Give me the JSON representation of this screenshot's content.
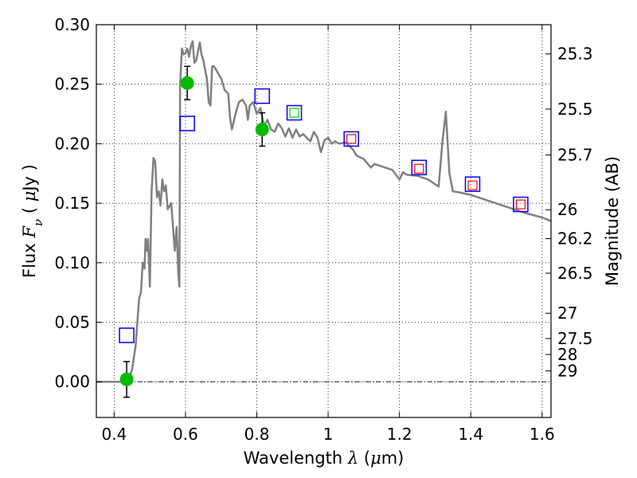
{
  "chart_data": {
    "type": "scatter",
    "title": "",
    "xlabel": {
      "prefix": "Wavelength  ",
      "symbol": "λ",
      "unit_open": " (",
      "unit_mu": "μ",
      "unit_close": "m)"
    },
    "ylabel": {
      "prefix": "Flux  ",
      "symbol": "F",
      "subscript": "ν",
      "unit_open": "  ( ",
      "unit_mu": "μ",
      "unit_close": "Jy )"
    },
    "y2label": "Magnitude (AB)",
    "xlim": [
      0.35,
      1.625
    ],
    "ylim": [
      -0.03,
      0.3
    ],
    "xticks": [
      {
        "value": 0.4,
        "label": "0.4"
      },
      {
        "value": 0.6,
        "label": "0.6"
      },
      {
        "value": 0.8,
        "label": "0.8"
      },
      {
        "value": 1.0,
        "label": "1"
      },
      {
        "value": 1.2,
        "label": "1.2"
      },
      {
        "value": 1.4,
        "label": "1.4"
      },
      {
        "value": 1.6,
        "label": "1.6"
      }
    ],
    "yticks": [
      {
        "value": 0.0,
        "label": "0.00"
      },
      {
        "value": 0.05,
        "label": "0.05"
      },
      {
        "value": 0.1,
        "label": "0.10"
      },
      {
        "value": 0.15,
        "label": "0.15"
      },
      {
        "value": 0.2,
        "label": "0.20"
      },
      {
        "value": 0.25,
        "label": "0.25"
      },
      {
        "value": 0.3,
        "label": "0.30"
      }
    ],
    "mag_ticks": [
      {
        "mag": 25.3,
        "label": "25.3"
      },
      {
        "mag": 25.5,
        "label": "25.5"
      },
      {
        "mag": 25.7,
        "label": "25.7"
      },
      {
        "mag": 26.0,
        "label": "26"
      },
      {
        "mag": 26.2,
        "label": "26.2"
      },
      {
        "mag": 26.5,
        "label": "26.5"
      },
      {
        "mag": 27.0,
        "label": "27"
      },
      {
        "mag": 27.5,
        "label": "27.5"
      },
      {
        "mag": 28.0,
        "label": "28"
      },
      {
        "mag": 29.0,
        "label": "29"
      }
    ],
    "zero_line": 0.0,
    "series": [
      {
        "name": "model-sed",
        "kind": "line",
        "color": "#808080",
        "points": [
          [
            0.35,
            0.0
          ],
          [
            0.43,
            0.0
          ],
          [
            0.44,
            0.002
          ],
          [
            0.45,
            0.01
          ],
          [
            0.46,
            0.03
          ],
          [
            0.47,
            0.07
          ],
          [
            0.475,
            0.075
          ],
          [
            0.48,
            0.1
          ],
          [
            0.485,
            0.095
          ],
          [
            0.488,
            0.12
          ],
          [
            0.492,
            0.11
          ],
          [
            0.495,
            0.12
          ],
          [
            0.5,
            0.08
          ],
          [
            0.505,
            0.16
          ],
          [
            0.51,
            0.188
          ],
          [
            0.515,
            0.185
          ],
          [
            0.52,
            0.155
          ],
          [
            0.525,
            0.16
          ],
          [
            0.53,
            0.148
          ],
          [
            0.535,
            0.17
          ],
          [
            0.54,
            0.16
          ],
          [
            0.545,
            0.165
          ],
          [
            0.55,
            0.145
          ],
          [
            0.56,
            0.15
          ],
          [
            0.565,
            0.13
          ],
          [
            0.57,
            0.11
          ],
          [
            0.575,
            0.13
          ],
          [
            0.58,
            0.09
          ],
          [
            0.583,
            0.08
          ],
          [
            0.585,
            0.25
          ],
          [
            0.59,
            0.28
          ],
          [
            0.595,
            0.275
          ],
          [
            0.6,
            0.276
          ],
          [
            0.605,
            0.28
          ],
          [
            0.61,
            0.273
          ],
          [
            0.615,
            0.282
          ],
          [
            0.62,
            0.286
          ],
          [
            0.625,
            0.268
          ],
          [
            0.63,
            0.27
          ],
          [
            0.64,
            0.285
          ],
          [
            0.645,
            0.275
          ],
          [
            0.65,
            0.27
          ],
          [
            0.655,
            0.262
          ],
          [
            0.66,
            0.255
          ],
          [
            0.665,
            0.235
          ],
          [
            0.67,
            0.232
          ],
          [
            0.675,
            0.265
          ],
          [
            0.68,
            0.265
          ],
          [
            0.69,
            0.26
          ],
          [
            0.695,
            0.257
          ],
          [
            0.7,
            0.255
          ],
          [
            0.705,
            0.25
          ],
          [
            0.71,
            0.245
          ],
          [
            0.72,
            0.242
          ],
          [
            0.725,
            0.222
          ],
          [
            0.73,
            0.212
          ],
          [
            0.735,
            0.218
          ],
          [
            0.74,
            0.225
          ],
          [
            0.75,
            0.235
          ],
          [
            0.76,
            0.237
          ],
          [
            0.77,
            0.232
          ],
          [
            0.775,
            0.22
          ],
          [
            0.78,
            0.232
          ],
          [
            0.79,
            0.235
          ],
          [
            0.8,
            0.225
          ],
          [
            0.81,
            0.23
          ],
          [
            0.82,
            0.215
          ],
          [
            0.83,
            0.22
          ],
          [
            0.84,
            0.212
          ],
          [
            0.85,
            0.21
          ],
          [
            0.86,
            0.217
          ],
          [
            0.87,
            0.213
          ],
          [
            0.88,
            0.206
          ],
          [
            0.89,
            0.213
          ],
          [
            0.9,
            0.205
          ],
          [
            0.91,
            0.212
          ],
          [
            0.92,
            0.206
          ],
          [
            0.93,
            0.208
          ],
          [
            0.94,
            0.205
          ],
          [
            0.95,
            0.202
          ],
          [
            0.96,
            0.21
          ],
          [
            0.97,
            0.205
          ],
          [
            0.98,
            0.193
          ],
          [
            0.99,
            0.203
          ],
          [
            1.0,
            0.205
          ],
          [
            1.01,
            0.2
          ],
          [
            1.02,
            0.202
          ],
          [
            1.03,
            0.2
          ],
          [
            1.05,
            0.201
          ],
          [
            1.07,
            0.195
          ],
          [
            1.08,
            0.19
          ],
          [
            1.1,
            0.187
          ],
          [
            1.12,
            0.18
          ],
          [
            1.13,
            0.183
          ],
          [
            1.15,
            0.181
          ],
          [
            1.18,
            0.178
          ],
          [
            1.2,
            0.17
          ],
          [
            1.21,
            0.176
          ],
          [
            1.22,
            0.174
          ],
          [
            1.25,
            0.173
          ],
          [
            1.28,
            0.17
          ],
          [
            1.31,
            0.164
          ],
          [
            1.32,
            0.2
          ],
          [
            1.33,
            0.227
          ],
          [
            1.34,
            0.175
          ],
          [
            1.35,
            0.16
          ],
          [
            1.37,
            0.159
          ],
          [
            1.4,
            0.157
          ],
          [
            1.45,
            0.152
          ],
          [
            1.5,
            0.147
          ],
          [
            1.55,
            0.142
          ],
          [
            1.6,
            0.138
          ],
          [
            1.625,
            0.135
          ]
        ]
      },
      {
        "name": "photometry-detections",
        "kind": "points-with-errorbars",
        "color": "#00bb00",
        "points": [
          {
            "x": 0.435,
            "y": 0.002,
            "err": 0.015
          },
          {
            "x": 0.605,
            "y": 0.251,
            "err": 0.014
          },
          {
            "x": 0.815,
            "y": 0.212,
            "err": 0.014
          }
        ]
      },
      {
        "name": "model-photometry",
        "kind": "open-squares",
        "color": "#0000ff",
        "points": [
          [
            0.435,
            0.039
          ],
          [
            0.605,
            0.217
          ],
          [
            0.815,
            0.24
          ],
          [
            0.905,
            0.226
          ],
          [
            1.065,
            0.204
          ],
          [
            1.255,
            0.18
          ],
          [
            1.405,
            0.166
          ],
          [
            1.54,
            0.149
          ]
        ]
      },
      {
        "name": "inner-markers",
        "kind": "small-open-squares",
        "points": [
          {
            "x": 0.905,
            "y": 0.226,
            "color": "#00cc00"
          },
          {
            "x": 1.065,
            "y": 0.204,
            "color": "#ff0000"
          },
          {
            "x": 1.255,
            "y": 0.179,
            "color": "#ff0000"
          },
          {
            "x": 1.405,
            "y": 0.165,
            "color": "#ff0000"
          },
          {
            "x": 1.54,
            "y": 0.149,
            "color": "#ff0000"
          }
        ]
      }
    ]
  }
}
